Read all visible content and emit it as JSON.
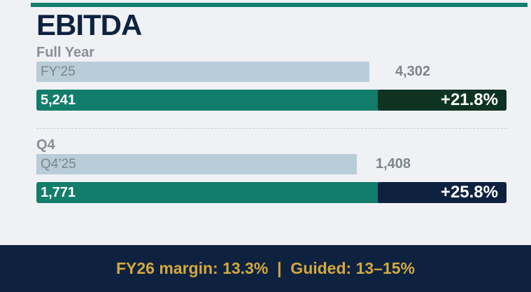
{
  "title": "EBITDA",
  "sections": [
    {
      "label": "Full Year",
      "prior": {
        "label": "FY’25",
        "value": "4,302"
      },
      "current": {
        "value": "5,241",
        "change": "+21.8%"
      }
    },
    {
      "label": "Q4",
      "prior": {
        "label": "Q4’25",
        "value": "1,408"
      },
      "current": {
        "value": "1,771",
        "change": "+25.8%"
      }
    }
  ],
  "footer": "FY26 margin: 13.3%  |  Guided: 13–15%"
}
